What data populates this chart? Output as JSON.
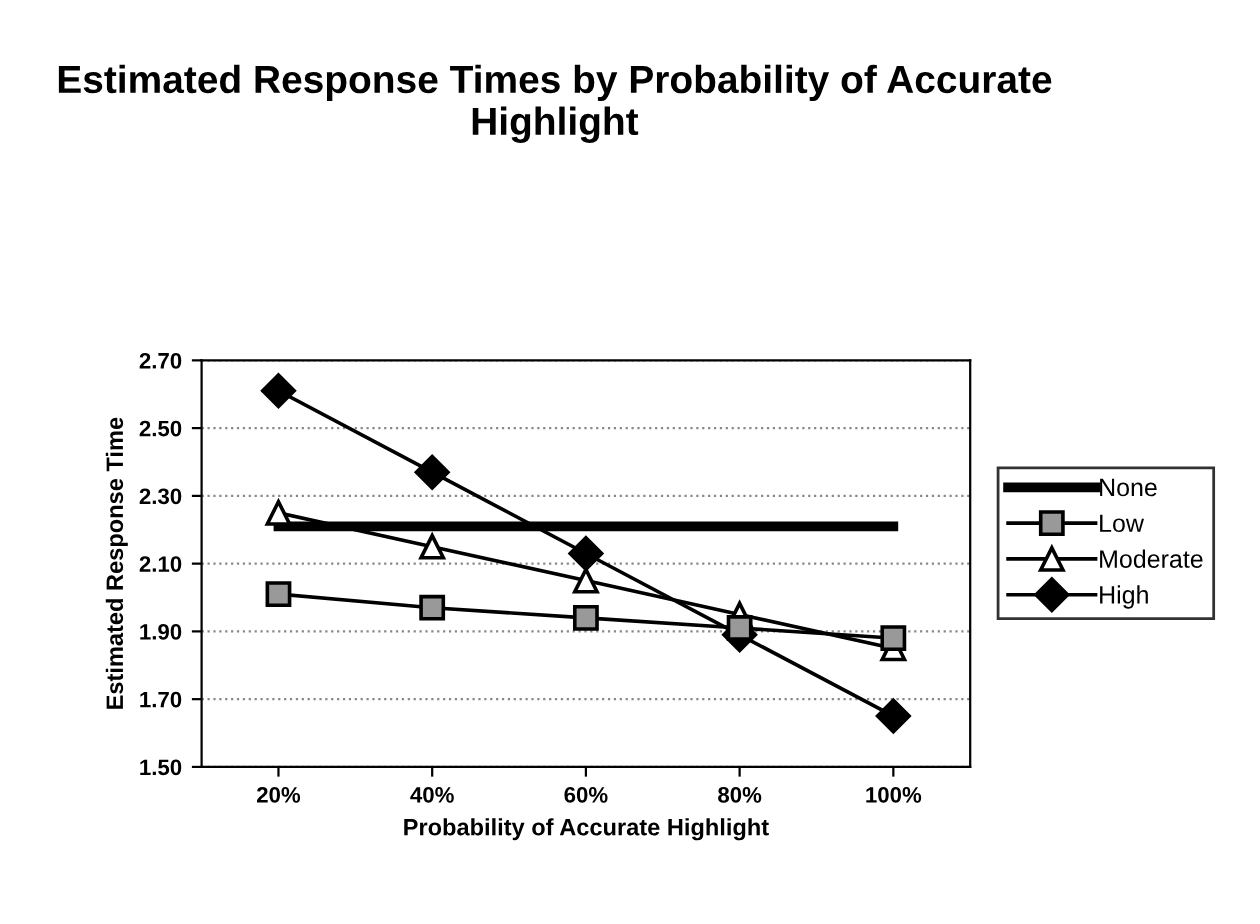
{
  "chart_data": {
    "type": "line",
    "title": "Estimated Response Times by Probability of Accurate Highlight",
    "xlabel": "Probability of Accurate Highlight",
    "ylabel": "Estimated Response Time",
    "categories": [
      "20%",
      "40%",
      "60%",
      "80%",
      "100%"
    ],
    "series": [
      {
        "name": "None",
        "color": "#000000",
        "marker": "none",
        "values": [
          2.21,
          2.21,
          2.21,
          2.21,
          2.21
        ]
      },
      {
        "name": "Low",
        "color": "#000000",
        "marker": "square",
        "values": [
          2.01,
          1.97,
          1.94,
          1.91,
          1.88
        ]
      },
      {
        "name": "Moderate",
        "color": "#000000",
        "marker": "triangle",
        "values": [
          2.25,
          2.15,
          2.05,
          1.95,
          1.85
        ]
      },
      {
        "name": "High",
        "color": "#000000",
        "marker": "diamond",
        "values": [
          2.61,
          2.37,
          2.13,
          1.89,
          1.65
        ]
      }
    ],
    "ylim": [
      1.5,
      2.7
    ],
    "yticks": [
      {
        "value": 1.5,
        "label": "1.50"
      },
      {
        "value": 1.7,
        "label": "1.70"
      },
      {
        "value": 1.9,
        "label": "1.90"
      },
      {
        "value": 2.1,
        "label": "2.10"
      },
      {
        "value": 2.3,
        "label": "2.30"
      },
      {
        "value": 2.5,
        "label": "2.50"
      },
      {
        "value": 2.7,
        "label": "2.70"
      }
    ],
    "grid": "y",
    "legend": "right",
    "line_style": "solid"
  }
}
